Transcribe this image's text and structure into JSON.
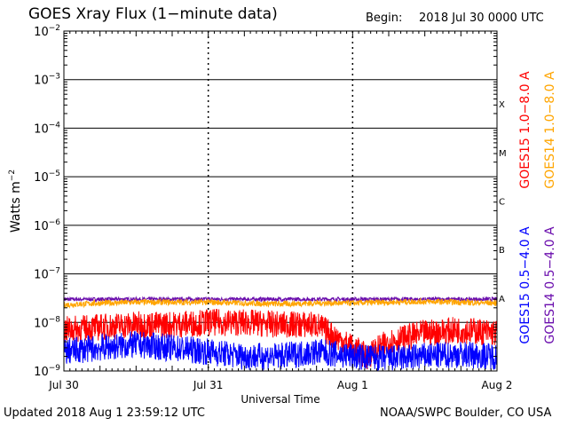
{
  "header": {
    "title": "GOES Xray Flux (1−minute data)",
    "begin_label": "Begin:",
    "begin_value": "2018 Jul 30 0000 UTC"
  },
  "footer": {
    "updated": "Updated 2018 Aug  1 23:59:12 UTC",
    "source": "NOAA/SWPC Boulder, CO USA"
  },
  "chart_data": {
    "type": "line",
    "title": "GOES Xray Flux (1−minute data)",
    "xlabel": "Universal Time",
    "ylabel": "Watts m",
    "ylabel_superscript": "−2",
    "yscale": "log",
    "ylim": [
      1e-09,
      0.01
    ],
    "xlim_days": [
      0,
      3
    ],
    "x_ticks": [
      {
        "day": 0,
        "label": "Jul 30"
      },
      {
        "day": 1,
        "label": "Jul 31"
      },
      {
        "day": 2,
        "label": "Aug 1"
      },
      {
        "day": 3,
        "label": "Aug 2"
      }
    ],
    "y_ticks": [
      {
        "exp": -9,
        "base": "10",
        "sup": "−9"
      },
      {
        "exp": -8,
        "base": "10",
        "sup": "−8"
      },
      {
        "exp": -7,
        "base": "10",
        "sup": "−7"
      },
      {
        "exp": -6,
        "base": "10",
        "sup": "−6"
      },
      {
        "exp": -5,
        "base": "10",
        "sup": "−5"
      },
      {
        "exp": -4,
        "base": "10",
        "sup": "−4"
      },
      {
        "exp": -3,
        "base": "10",
        "sup": "−3"
      },
      {
        "exp": -2,
        "base": "10",
        "sup": "−2"
      }
    ],
    "flare_classes": [
      {
        "label": "A",
        "exp": -8
      },
      {
        "label": "B",
        "exp": -7
      },
      {
        "label": "C",
        "exp": -6
      },
      {
        "label": "M",
        "exp": -5
      },
      {
        "label": "X",
        "exp": -4
      }
    ],
    "grid": true,
    "legend_placement": "right, vertical",
    "series": [
      {
        "name": "GOES15 1.0−8.0 A",
        "color": "#ff0000",
        "x": [
          0,
          0.25,
          0.5,
          0.75,
          1.0,
          1.25,
          1.5,
          1.75,
          2.0,
          2.1,
          2.25,
          2.5,
          2.75,
          3.0
        ],
        "y": [
          7e-09,
          8e-09,
          9e-09,
          9e-09,
          1e-08,
          1e-08,
          9e-09,
          9e-09,
          3e-09,
          2e-09,
          4e-09,
          6e-09,
          7e-09,
          6e-09
        ]
      },
      {
        "name": "GOES14 1.0−8.0 A",
        "color": "#ffa500",
        "x": [
          0,
          0.25,
          0.5,
          0.75,
          1.0,
          1.25,
          1.5,
          1.75,
          2.0,
          2.25,
          2.5,
          2.75,
          3.0
        ],
        "y": [
          2.3e-08,
          2.5e-08,
          2.6e-08,
          2.6e-08,
          2.6e-08,
          2.5e-08,
          2.4e-08,
          2.5e-08,
          2.5e-08,
          2.6e-08,
          2.7e-08,
          2.6e-08,
          2.5e-08
        ]
      },
      {
        "name": "GOES15 0.5−4.0 A",
        "color": "#0000ff",
        "x": [
          0,
          0.25,
          0.5,
          0.75,
          1.0,
          1.25,
          1.5,
          1.75,
          2.0,
          2.25,
          2.5,
          2.75,
          3.0
        ],
        "y": [
          2.5e-09,
          3e-09,
          3.5e-09,
          3e-09,
          2.5e-09,
          2e-09,
          2e-09,
          2.5e-09,
          2e-09,
          1.8e-09,
          2e-09,
          2.2e-09,
          2e-09
        ]
      },
      {
        "name": "GOES14 0.5−4.0 A",
        "color": "#6a0dad",
        "x": [
          0,
          0.25,
          0.5,
          0.75,
          1.0,
          1.25,
          1.5,
          1.75,
          2.0,
          2.25,
          2.5,
          2.75,
          3.0
        ],
        "y": [
          3e-08,
          3e-08,
          3e-08,
          3e-08,
          3e-08,
          3e-08,
          3e-08,
          3e-08,
          3e-08,
          3e-08,
          3e-08,
          3e-08,
          3e-08
        ]
      }
    ]
  }
}
